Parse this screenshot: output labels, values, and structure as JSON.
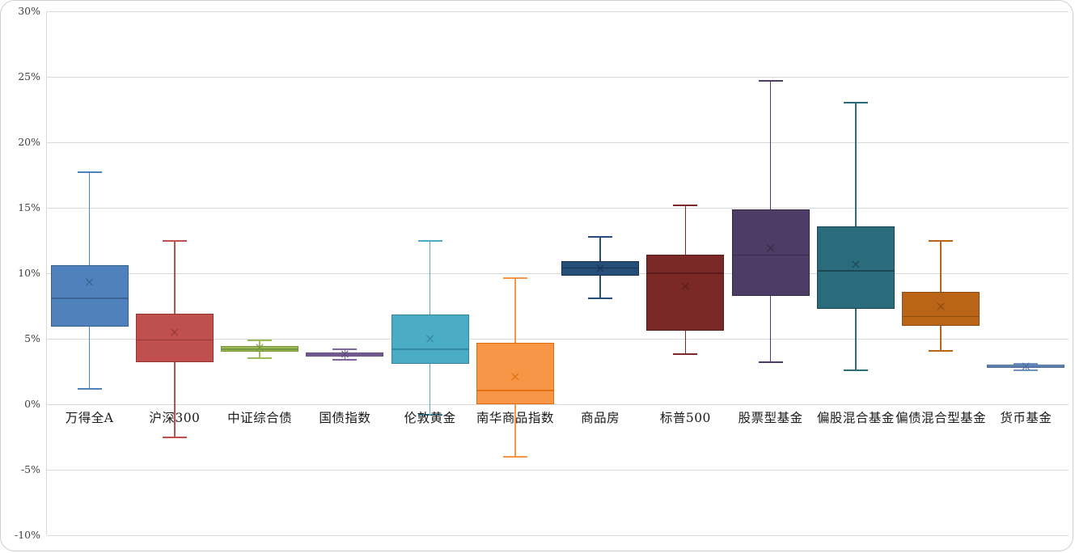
{
  "frame": {
    "background": "#ffffff",
    "border_color": "#cfcfcf"
  },
  "chart_data": {
    "type": "boxplot",
    "title": "",
    "xlabel": "",
    "ylabel": "",
    "unit": "%",
    "y_axis": {
      "min": -10,
      "max": 30,
      "step": 5,
      "tick_labels": [
        "30%",
        "25%",
        "20%",
        "15%",
        "10%",
        "5%",
        "0%",
        "-5%",
        "-10%"
      ],
      "tick_values": [
        30,
        25,
        20,
        15,
        10,
        5,
        0,
        -5,
        -10
      ],
      "grid": true,
      "gridline_color": "#d9d9d9",
      "label_color": "#404040"
    },
    "categories": [
      "万得全A",
      "沪深300",
      "中证综合债",
      "国债指数",
      "伦敦黄金",
      "南华商品指数",
      "商品房",
      "标普500",
      "股票型基金",
      "偏股混合基金",
      "偏债混合型基金",
      "货币基金"
    ],
    "series": [
      {
        "name": "万得全A",
        "fill": "#4F81BD",
        "stroke": "#36618E",
        "low": 1.2,
        "q1": 5.9,
        "median": 8.1,
        "q3": 10.6,
        "high": 17.7,
        "mean": 9.3
      },
      {
        "name": "沪深300",
        "fill": "#C0504D",
        "stroke": "#943634",
        "low": -2.5,
        "q1": 3.2,
        "median": 4.9,
        "q3": 6.9,
        "high": 12.5,
        "mean": 5.5
      },
      {
        "name": "中证综合债",
        "fill": "#9BBB59",
        "stroke": "#77933C",
        "low": 3.5,
        "q1": 4.0,
        "median": 4.2,
        "q3": 4.45,
        "high": 4.85,
        "mean": 4.35
      },
      {
        "name": "国债指数",
        "fill": "#8064A2",
        "stroke": "#5F497A",
        "low": 3.4,
        "q1": 3.65,
        "median": 3.8,
        "q3": 3.95,
        "high": 4.2,
        "mean": 3.8
      },
      {
        "name": "伦敦黄金",
        "fill": "#4BACC6",
        "stroke": "#31859C",
        "low": -0.8,
        "q1": 3.1,
        "median": 4.2,
        "q3": 6.85,
        "high": 12.5,
        "mean": 5.0
      },
      {
        "name": "南华商品指数",
        "fill": "#F79646",
        "stroke": "#E36C09",
        "low": -4.0,
        "q1": 0.0,
        "median": 1.05,
        "q3": 4.7,
        "high": 9.6,
        "mean": 2.1
      },
      {
        "name": "商品房",
        "fill": "#254E78",
        "stroke": "#16314C",
        "low": 8.1,
        "q1": 9.8,
        "median": 10.4,
        "q3": 10.9,
        "high": 12.8,
        "mean": 10.35
      },
      {
        "name": "标普500",
        "fill": "#7B2927",
        "stroke": "#551B1A",
        "low": 3.8,
        "q1": 5.6,
        "median": 10.0,
        "q3": 11.4,
        "high": 15.2,
        "mean": 9.0
      },
      {
        "name": "股票型基金",
        "fill": "#4D3D66",
        "stroke": "#342945",
        "low": 3.2,
        "q1": 8.3,
        "median": 11.4,
        "q3": 14.9,
        "high": 24.7,
        "mean": 11.9
      },
      {
        "name": "偏股混合基金",
        "fill": "#2A6B7C",
        "stroke": "#1B4550",
        "low": 2.6,
        "q1": 7.3,
        "median": 10.2,
        "q3": 13.6,
        "high": 23.0,
        "mean": 10.7
      },
      {
        "name": "偏债混合型基金",
        "fill": "#BA6418",
        "stroke": "#8C4A11",
        "low": 4.1,
        "q1": 6.0,
        "median": 6.7,
        "q3": 8.6,
        "high": 12.5,
        "mean": 7.5
      },
      {
        "name": "货币基金",
        "fill": "#7093C6",
        "stroke": "#4F6F9E",
        "low": 2.6,
        "q1": 2.75,
        "median": 2.85,
        "q3": 3.0,
        "high": 3.1,
        "mean": 2.9
      }
    ],
    "mean_marker_glyph": "×",
    "legend": "none"
  }
}
